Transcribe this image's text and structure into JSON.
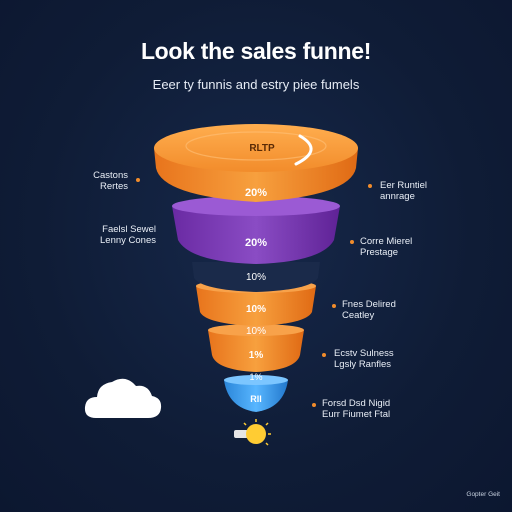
{
  "title": "Look the sales funne!",
  "subtitle": "Eeer ty funnis and estry piee fumels",
  "colors": {
    "background": "#0f1c36",
    "orange": "#f28c2b",
    "purple": "#7b3cb3",
    "blue": "#3aa0f0",
    "text": "#ffffff"
  },
  "top_disc_text": "RLTP",
  "stages": [
    {
      "label": "20%",
      "color": "orange"
    },
    {
      "label": "20%",
      "color": "purple"
    },
    {
      "label": "10%",
      "color": "orange"
    },
    {
      "label": "10%",
      "color": "orange"
    },
    {
      "label": "1%",
      "color": "orange"
    },
    {
      "label": "1%",
      "color": "blue"
    },
    {
      "label": "Rll",
      "color": "blue"
    }
  ],
  "gap_labels": [
    "10%",
    "10%",
    "1%"
  ],
  "labels_left": [
    [
      "Castons",
      "Rertes"
    ],
    [
      "Faelsl Sewel",
      "Lenny Cones"
    ]
  ],
  "labels_right": [
    [
      "Eer Runtiel",
      "annrage"
    ],
    [
      "Corre Mierel",
      "Prestage"
    ],
    [
      "Fnes Delired",
      "Ceatley"
    ],
    [
      "Ecstv Sulness",
      "Lgsly Ranfles"
    ],
    [
      "Forsd Dsd Nigid",
      "Eurr Fiumet Ftal"
    ]
  ],
  "credit": "Gopter Geit",
  "icons": [
    "cloud-icon",
    "lightbulb-icon"
  ]
}
